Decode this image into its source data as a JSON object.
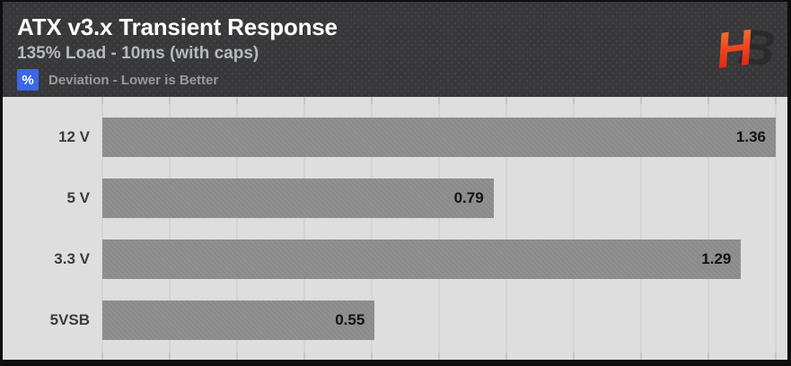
{
  "header": {
    "title": "ATX v3.x Transient Response",
    "subtitle": "135% Load - 10ms (with caps)",
    "unit_badge": "%",
    "caption": "Deviation - Lower is Better",
    "logo_text_left": "H",
    "logo_text_right": "B"
  },
  "colors": {
    "header_bg": "#38383a",
    "chart_bg": "#dedede",
    "bar": "#8f8f8f",
    "badge_blue": "#3c66e8",
    "title_text": "#ffffff",
    "subtitle_text": "#b3bac1",
    "caption_text": "#9b9b9b",
    "label_text": "#3c3c3c",
    "value_text": "#121212",
    "gridline": "#d5d5d5",
    "logo_orange": "#f2883a",
    "logo_red": "#e01313",
    "logo_dark": "#2b2b2d"
  },
  "chart_data": {
    "type": "bar",
    "orientation": "horizontal",
    "title": "ATX v3.x Transient Response",
    "subtitle": "135% Load - 10ms (with caps)",
    "xlabel": "% Deviation - Lower is Better",
    "categories": [
      "12 V",
      "5 V",
      "3.3 V",
      "5VSB"
    ],
    "values": [
      1.36,
      0.79,
      1.29,
      0.55
    ],
    "value_labels": [
      "1.36",
      "0.79",
      "1.29",
      "0.55"
    ],
    "xlim": [
      0,
      1.36
    ],
    "grid": true,
    "gridline_count": 11,
    "legend": "none",
    "value_label_position": "inside-end"
  }
}
